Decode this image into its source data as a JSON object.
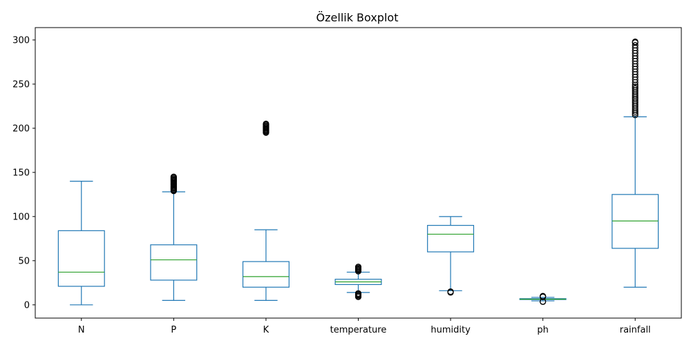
{
  "chart_data": {
    "type": "boxplot",
    "title": "Özellik Boxplot",
    "xlabel": "",
    "ylabel": "",
    "ylim": [
      -15,
      314
    ],
    "yticks": [
      0,
      50,
      100,
      150,
      200,
      250,
      300
    ],
    "grid": false,
    "colors": {
      "box": "#1f77b4",
      "median": "#2ca02c"
    },
    "categories": [
      "N",
      "P",
      "K",
      "temperature",
      "humidity",
      "ph",
      "rainfall"
    ],
    "boxes": [
      {
        "label": "N",
        "whisker_low": 0,
        "q1": 21,
        "median": 37,
        "q3": 84,
        "whisker_high": 140,
        "outliers": []
      },
      {
        "label": "P",
        "whisker_low": 5,
        "q1": 28,
        "median": 51,
        "q3": 68,
        "whisker_high": 128,
        "outliers": [
          129,
          130,
          131,
          132,
          133,
          134,
          135,
          136,
          137,
          138,
          139,
          140,
          141,
          142,
          143,
          144,
          145
        ]
      },
      {
        "label": "K",
        "whisker_low": 5,
        "q1": 20,
        "median": 32,
        "q3": 49,
        "whisker_high": 85,
        "outliers": [
          195,
          196,
          197,
          198,
          199,
          200,
          201,
          202,
          203,
          204,
          205
        ]
      },
      {
        "label": "temperature",
        "whisker_low": 14,
        "q1": 23,
        "median": 26,
        "q3": 29,
        "whisker_high": 37,
        "outliers": [
          9,
          10,
          11,
          12,
          13,
          38,
          39,
          40,
          41,
          42,
          43
        ]
      },
      {
        "label": "humidity",
        "whisker_low": 16,
        "q1": 60,
        "median": 80,
        "q3": 90,
        "whisker_high": 100,
        "outliers": [
          14,
          15
        ]
      },
      {
        "label": "ph",
        "whisker_low": 4.5,
        "q1": 6,
        "median": 6.4,
        "q3": 7,
        "whisker_high": 8.5,
        "outliers": [
          3.5,
          3.8,
          9,
          9.5,
          9.9
        ]
      },
      {
        "label": "rainfall",
        "whisker_low": 20,
        "q1": 64,
        "median": 95,
        "q3": 125,
        "whisker_high": 213,
        "outliers": [
          215,
          217,
          219,
          221,
          223,
          225,
          227,
          229,
          231,
          233,
          235,
          237,
          239,
          241,
          243,
          245,
          247,
          249,
          252,
          255,
          258,
          261,
          264,
          267,
          270,
          273,
          276,
          279,
          282,
          285,
          288,
          291,
          294,
          297,
          298
        ]
      }
    ]
  }
}
